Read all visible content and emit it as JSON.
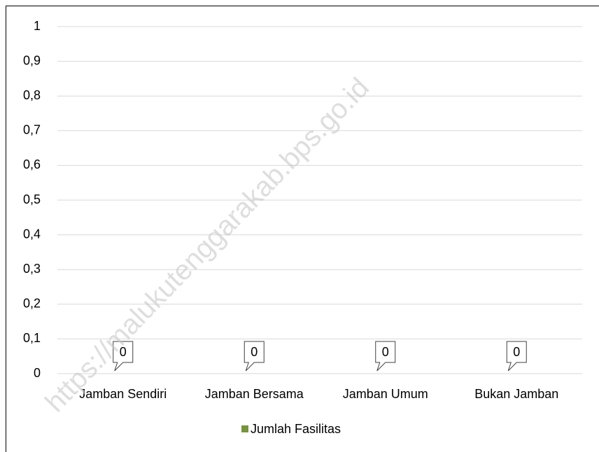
{
  "chart_data": {
    "type": "bar",
    "categories": [
      "Jamban Sendiri",
      "Jamban Bersama",
      "Jamban Umum",
      "Bukan Jamban"
    ],
    "series": [
      {
        "name": "Jumlah Fasilitas",
        "color": "#77933c",
        "values": [
          0,
          0,
          0,
          0
        ]
      }
    ],
    "ylim": [
      0,
      1
    ],
    "yticks": [
      0,
      {
        "value": 0.1,
        "label": "0,1"
      },
      {
        "value": 0.2,
        "label": "0,2"
      },
      {
        "value": 0.3,
        "label": "0,3"
      },
      {
        "value": 0.4,
        "label": "0,4"
      },
      {
        "value": 0.5,
        "label": "0,5"
      },
      {
        "value": 0.6,
        "label": "0,6"
      },
      {
        "value": 0.7,
        "label": "0,7"
      },
      {
        "value": 0.8,
        "label": "0,8"
      },
      {
        "value": 0.9,
        "label": "0,9"
      },
      1
    ],
    "grid": true,
    "legend": "bottom",
    "watermark": "https://malukutenggarakab.bps.go.id"
  }
}
